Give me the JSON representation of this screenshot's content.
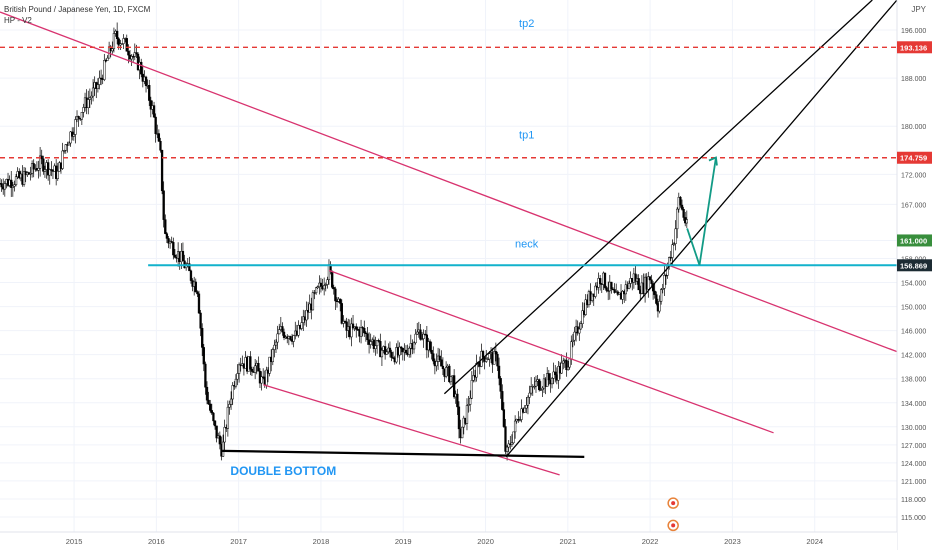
{
  "header": {
    "title": "British Pound / Japanese Yen, 1D, FXCM",
    "indicator": "HP - V2",
    "currency": "JPY"
  },
  "colors": {
    "trendline_magenta": "#d8336f",
    "channel_black": "#000000",
    "neckline_cyan": "#12b2cc",
    "target_red": "#e53935",
    "projection_teal": "#129b86",
    "label_blue": "#2196f3",
    "current_price_green": "#388e3c",
    "candle_up": "#ffffff",
    "candle_down": "#000000"
  },
  "chart_data": {
    "type": "line",
    "title": "British Pound / Japanese Yen, 1D, FXCM",
    "xlabel": "",
    "ylabel": "",
    "xlim": [
      2014.1,
      2025.0
    ],
    "ylim": [
      112.5,
      201.0
    ],
    "x_ticks": [
      "2015",
      "2016",
      "2017",
      "2018",
      "2019",
      "2020",
      "2021",
      "2022",
      "2023",
      "2024"
    ],
    "y_ticks": [
      "196.000",
      "188.000",
      "180.000",
      "172.000",
      "167.000",
      "161.000",
      "158.000",
      "154.000",
      "150.000",
      "146.000",
      "142.000",
      "138.000",
      "134.000",
      "130.000",
      "127.000",
      "124.000",
      "121.000",
      "118.000",
      "115.000"
    ],
    "y_tick_values": [
      196,
      188,
      180,
      172,
      167,
      161,
      158,
      154,
      150,
      146,
      142,
      138,
      134,
      130,
      127,
      124,
      121,
      118,
      115
    ],
    "price_path": [
      [
        2014.1,
        170.5
      ],
      [
        2014.4,
        171.5
      ],
      [
        2014.6,
        174
      ],
      [
        2014.8,
        172
      ],
      [
        2014.9,
        177
      ],
      [
        2015.1,
        183
      ],
      [
        2015.3,
        187
      ],
      [
        2015.5,
        195
      ],
      [
        2015.6,
        194
      ],
      [
        2015.8,
        190
      ],
      [
        2015.95,
        183
      ],
      [
        2016.05,
        175
      ],
      [
        2016.1,
        162
      ],
      [
        2016.3,
        158
      ],
      [
        2016.5,
        153
      ],
      [
        2016.6,
        136
      ],
      [
        2016.7,
        130
      ],
      [
        2016.8,
        126
      ],
      [
        2016.9,
        135
      ],
      [
        2017.0,
        141
      ],
      [
        2017.2,
        140
      ],
      [
        2017.3,
        137
      ],
      [
        2017.5,
        146
      ],
      [
        2017.7,
        145
      ],
      [
        2017.9,
        151
      ],
      [
        2018.1,
        156
      ],
      [
        2018.3,
        146
      ],
      [
        2018.5,
        146
      ],
      [
        2018.7,
        143
      ],
      [
        2018.9,
        142
      ],
      [
        2019.0,
        142
      ],
      [
        2019.2,
        146
      ],
      [
        2019.4,
        141
      ],
      [
        2019.6,
        138
      ],
      [
        2019.7,
        128
      ],
      [
        2019.9,
        141
      ],
      [
        2020.0,
        142
      ],
      [
        2020.15,
        141
      ],
      [
        2020.25,
        125
      ],
      [
        2020.4,
        132
      ],
      [
        2020.6,
        137
      ],
      [
        2020.8,
        138
      ],
      [
        2021.0,
        141
      ],
      [
        2021.2,
        150
      ],
      [
        2021.4,
        155
      ],
      [
        2021.6,
        151
      ],
      [
        2021.8,
        155
      ],
      [
        2021.9,
        153
      ],
      [
        2022.0,
        155
      ],
      [
        2022.1,
        150
      ],
      [
        2022.2,
        156
      ],
      [
        2022.3,
        162
      ],
      [
        2022.35,
        168
      ],
      [
        2022.45,
        163
      ]
    ],
    "annotations": [
      "tp2",
      "tp1",
      "neck",
      "DOUBLE  BOTTOM"
    ],
    "levels": [
      {
        "name": "tp2",
        "value": 193.136,
        "label": "193.136",
        "style": "dashed",
        "color": "#e53935"
      },
      {
        "name": "tp1",
        "value": 174.759,
        "label": "174.759",
        "style": "dashed",
        "color": "#e53935"
      },
      {
        "name": "neck",
        "value": 156.869,
        "label": "156.869",
        "style": "solid",
        "color": "#12b2cc"
      }
    ],
    "current_price": {
      "value": 161.0,
      "label": "161.000"
    },
    "trendlines": [
      {
        "name": "magenta-long-downtrend",
        "color": "#d8336f",
        "points": [
          [
            2014.1,
            199
          ],
          [
            2025.0,
            142.5
          ]
        ]
      },
      {
        "name": "magenta-upper-channel",
        "color": "#d8336f",
        "points": [
          [
            2018.1,
            156
          ],
          [
            2023.5,
            129
          ]
        ]
      },
      {
        "name": "magenta-lower-channel",
        "color": "#d8336f",
        "points": [
          [
            2017.3,
            137
          ],
          [
            2020.9,
            122
          ]
        ]
      },
      {
        "name": "black-upper-channel",
        "color": "#000000",
        "points": [
          [
            2019.5,
            135.5
          ],
          [
            2024.7,
            201
          ]
        ]
      },
      {
        "name": "black-lower-channel",
        "color": "#000000",
        "points": [
          [
            2020.25,
            125
          ],
          [
            2025.0,
            201
          ]
        ]
      },
      {
        "name": "double-bottom-base",
        "color": "#000000",
        "points": [
          [
            2016.8,
            126
          ],
          [
            2021.2,
            125
          ]
        ]
      }
    ],
    "projection_arrows": [
      [
        [
          2022.45,
          163
        ],
        [
          2022.6,
          156.9
        ]
      ],
      [
        [
          2022.6,
          156.9
        ],
        [
          2022.8,
          174.8
        ]
      ]
    ],
    "grid": true,
    "legend": "none"
  }
}
